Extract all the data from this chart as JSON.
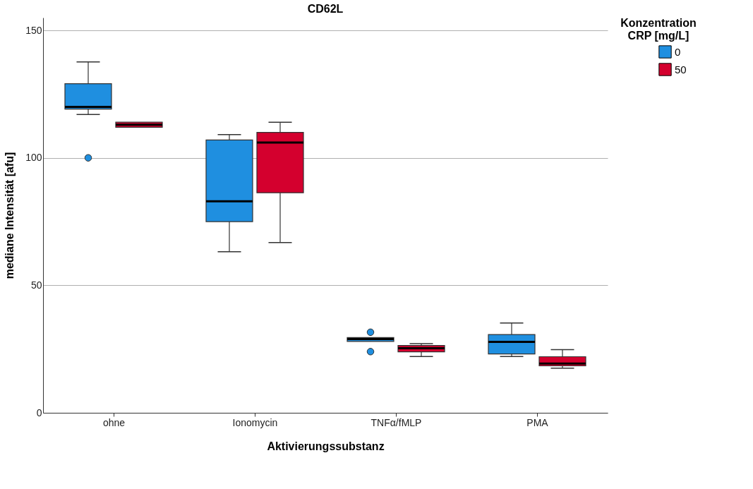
{
  "chart_data": {
    "type": "box",
    "title": "CD62L",
    "xlabel": "Aktivierungssubstanz",
    "ylabel": "mediane Intensität [afu]",
    "legend_title": "Konzentration CRP [mg/L]",
    "categories": [
      "ohne",
      "Ionomycin",
      "TNFα/fMLP",
      "PMA"
    ],
    "ylim": [
      0,
      155
    ],
    "yticks": [
      0,
      50,
      100,
      150
    ],
    "grid": "y",
    "legend": "top right",
    "series": [
      {
        "name": "0",
        "color": "#1f8fe0",
        "boxes": [
          {
            "low": 117,
            "q1": 119.1,
            "median": 120,
            "q3": 129.1,
            "high": 137.6,
            "outliers": [
              100
            ]
          },
          {
            "low": 63.2,
            "q1": 75,
            "median": 83,
            "q3": 107,
            "high": 109.1
          },
          {
            "low": 28,
            "q1": 28,
            "median": 28.9,
            "q3": 29.5,
            "high": 29.5,
            "outliers": [
              31.6,
              24
            ]
          },
          {
            "low": 22.1,
            "q1": 23.1,
            "median": 27.8,
            "q3": 30.7,
            "high": 35.2
          }
        ]
      },
      {
        "name": "50",
        "color": "#d4002e",
        "boxes": [
          {
            "low": 112,
            "q1": 112,
            "median": 113,
            "q3": 114,
            "high": 114
          },
          {
            "low": 66.8,
            "q1": 86.3,
            "median": 106,
            "q3": 110,
            "high": 114
          },
          {
            "low": 22.1,
            "q1": 23.9,
            "median": 25.3,
            "q3": 26.4,
            "high": 27.1
          },
          {
            "low": 17.5,
            "q1": 18.4,
            "median": 19.3,
            "q3": 22,
            "high": 24.8
          }
        ]
      }
    ]
  }
}
